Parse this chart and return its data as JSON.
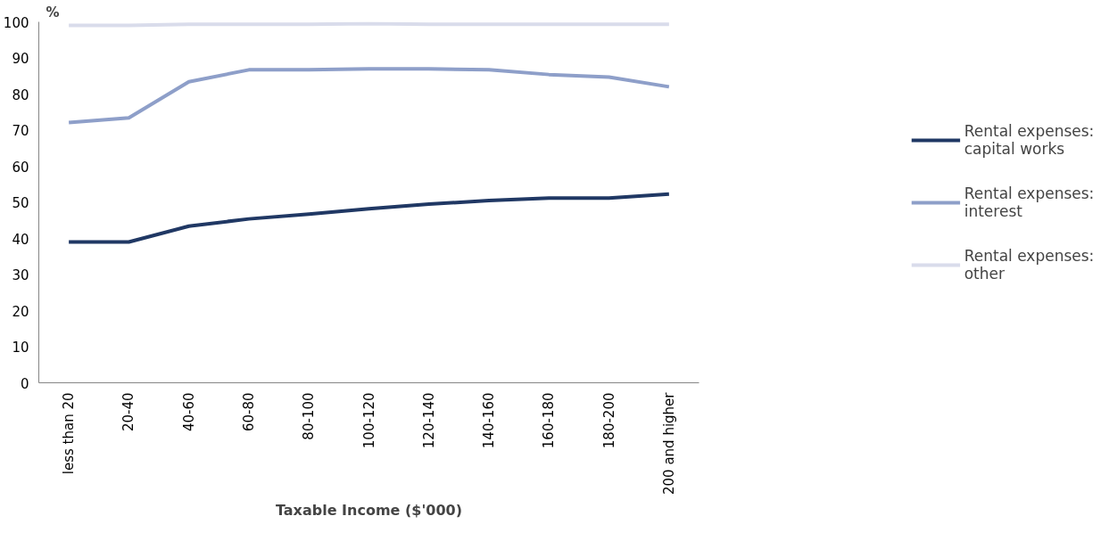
{
  "chart_data": {
    "type": "line",
    "xlabel": "Taxable Income ($'000)",
    "ylabel": "%",
    "categories": [
      "less than 20",
      "20-40",
      "40-60",
      "60-80",
      "80-100",
      "100-120",
      "120-140",
      "140-160",
      "160-180",
      "180-200",
      "200 and higher"
    ],
    "series": [
      {
        "name": "Rental expenses: capital works",
        "color": "#203864",
        "values": [
          39.0,
          39.0,
          43.4,
          45.4,
          46.7,
          48.2,
          49.5,
          50.5,
          51.2,
          51.2,
          52.3
        ]
      },
      {
        "name": "Rental expenses: interest",
        "color": "#8e9fc9",
        "values": [
          72.1,
          73.4,
          83.4,
          86.7,
          86.7,
          87.0,
          87.0,
          86.7,
          85.4,
          84.7,
          82.0
        ]
      },
      {
        "name": "Rental expenses: other",
        "color": "#d9dceb",
        "values": [
          99.0,
          99.0,
          99.3,
          99.3,
          99.3,
          99.5,
          99.3,
          99.3,
          99.3,
          99.3,
          99.3
        ]
      }
    ],
    "ylim": [
      0,
      100
    ],
    "yticks": [
      0,
      10,
      20,
      30,
      40,
      50,
      60,
      70,
      80,
      90,
      100
    ],
    "grid": false,
    "legend": "right",
    "marker": "none",
    "line_style": "solid"
  }
}
